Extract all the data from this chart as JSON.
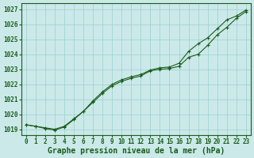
{
  "title": "Graphe pression niveau de la mer (hPa)",
  "bg_color": "#cbe9e9",
  "plot_bg_color": "#cbe9e9",
  "line_color": "#1a5c1a",
  "grid_color": "#9ecece",
  "ylim": [
    1018.6,
    1027.4
  ],
  "xlim": [
    -0.5,
    23.5
  ],
  "yticks": [
    1019,
    1020,
    1021,
    1022,
    1023,
    1024,
    1025,
    1026,
    1027
  ],
  "xticks": [
    0,
    1,
    2,
    3,
    4,
    5,
    6,
    7,
    8,
    9,
    10,
    11,
    12,
    13,
    14,
    15,
    16,
    17,
    18,
    19,
    20,
    21,
    22,
    23
  ],
  "line1_x": [
    0,
    1,
    2,
    3,
    4,
    5,
    6,
    7,
    8,
    9,
    10,
    11,
    12,
    13,
    14,
    15,
    16,
    17,
    18,
    19,
    20,
    21,
    22,
    23
  ],
  "line1_y": [
    1019.3,
    1019.2,
    1019.1,
    1019.0,
    1019.2,
    1019.7,
    1020.2,
    1020.8,
    1021.4,
    1021.9,
    1022.2,
    1022.4,
    1022.55,
    1022.9,
    1023.0,
    1023.05,
    1023.2,
    1023.8,
    1024.0,
    1024.6,
    1025.3,
    1025.8,
    1026.4,
    1026.85
  ],
  "line2_x": [
    0,
    1,
    2,
    3,
    4,
    5,
    6,
    7,
    8,
    9,
    10,
    11,
    12,
    13,
    14,
    15,
    16,
    17,
    18,
    19,
    20,
    21,
    22,
    23
  ],
  "line2_y": [
    1019.3,
    1019.2,
    1019.05,
    1018.95,
    1019.15,
    1019.65,
    1020.2,
    1020.9,
    1021.5,
    1022.0,
    1022.3,
    1022.5,
    1022.65,
    1022.95,
    1023.1,
    1023.15,
    1023.4,
    1024.2,
    1024.7,
    1025.1,
    1025.7,
    1026.3,
    1026.55,
    1026.95
  ],
  "tick_fontsize": 5.5,
  "title_fontsize": 7,
  "linewidth": 0.8,
  "markersize": 2.5
}
